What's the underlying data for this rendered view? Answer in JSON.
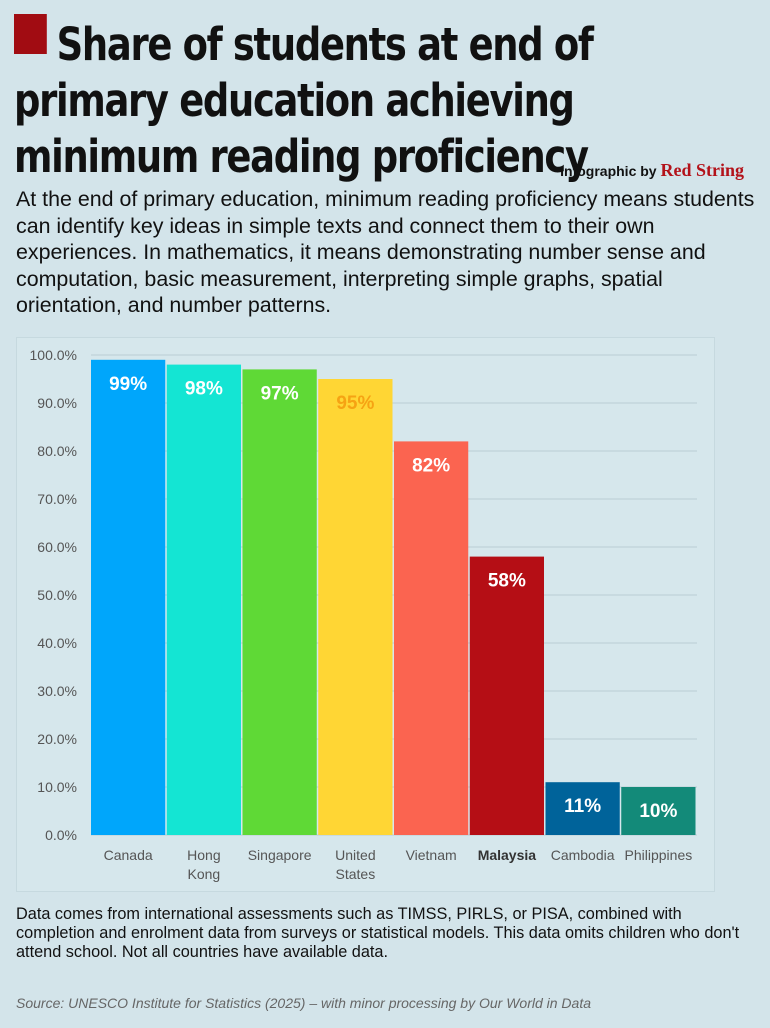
{
  "header": {
    "title": "Share of students at end of primary education achieving minimum reading proficiency",
    "credit_prefix": "Infographic by",
    "credit_brand": "Red String",
    "subtitle": "At the end of primary education, minimum reading proficiency means students can identify key ideas in simple texts and connect them to their own experiences. In mathematics, it means demonstrating number sense and computation, basic measurement, interpreting simple graphs, spatial orientation, and number patterns."
  },
  "footer": {
    "notes": "Data comes from international assessments such as TIMSS, PIRLS, or PISA, combined with completion and enrolment data from surveys or statistical models. This data omits children who don't attend school. Not all countries have available data.",
    "source_label": "Source:",
    "source_text": "UNESCO Institute for Statistics (2025) – with minor processing by Our World in Data"
  },
  "colors": {
    "title_square": "#a10c12",
    "brand": "#b3121a",
    "gridline": "#b9cdd4"
  },
  "chart_data": {
    "type": "bar",
    "title": "",
    "xlabel": "",
    "ylabel": "",
    "ylim": [
      0,
      100
    ],
    "yticks": [
      "0.0%",
      "10.0%",
      "20.0%",
      "30.0%",
      "40.0%",
      "50.0%",
      "60.0%",
      "70.0%",
      "80.0%",
      "90.0%",
      "100.0%"
    ],
    "grid": true,
    "categories": [
      "Canada",
      "Hong Kong",
      "Singapore",
      "United States",
      "Vietnam",
      "Malaysia",
      "Cambodia",
      "Philippines"
    ],
    "category_lines": [
      [
        "Canada"
      ],
      [
        "Hong",
        "Kong"
      ],
      [
        "Singapore"
      ],
      [
        "United",
        "States"
      ],
      [
        "Vietnam"
      ],
      [
        "Malaysia"
      ],
      [
        "Cambodia"
      ],
      [
        "Philippines"
      ]
    ],
    "highlighted_category": "Malaysia",
    "values": [
      99,
      98,
      97,
      95,
      82,
      58,
      11,
      10
    ],
    "data_labels": [
      "99%",
      "98%",
      "97%",
      "95%",
      "82%",
      "58%",
      "11%",
      "10%"
    ],
    "bar_colors": [
      "#00a6fb",
      "#14e5d3",
      "#5fd936",
      "#ffd634",
      "#fb6450",
      "#b50e15",
      "#00639a",
      "#138a79"
    ],
    "label_colors": [
      "#ffffff",
      "#ffffff",
      "#ffffff",
      "#f6a313",
      "#ffffff",
      "#ffffff",
      "#ffffff",
      "#ffffff"
    ]
  }
}
